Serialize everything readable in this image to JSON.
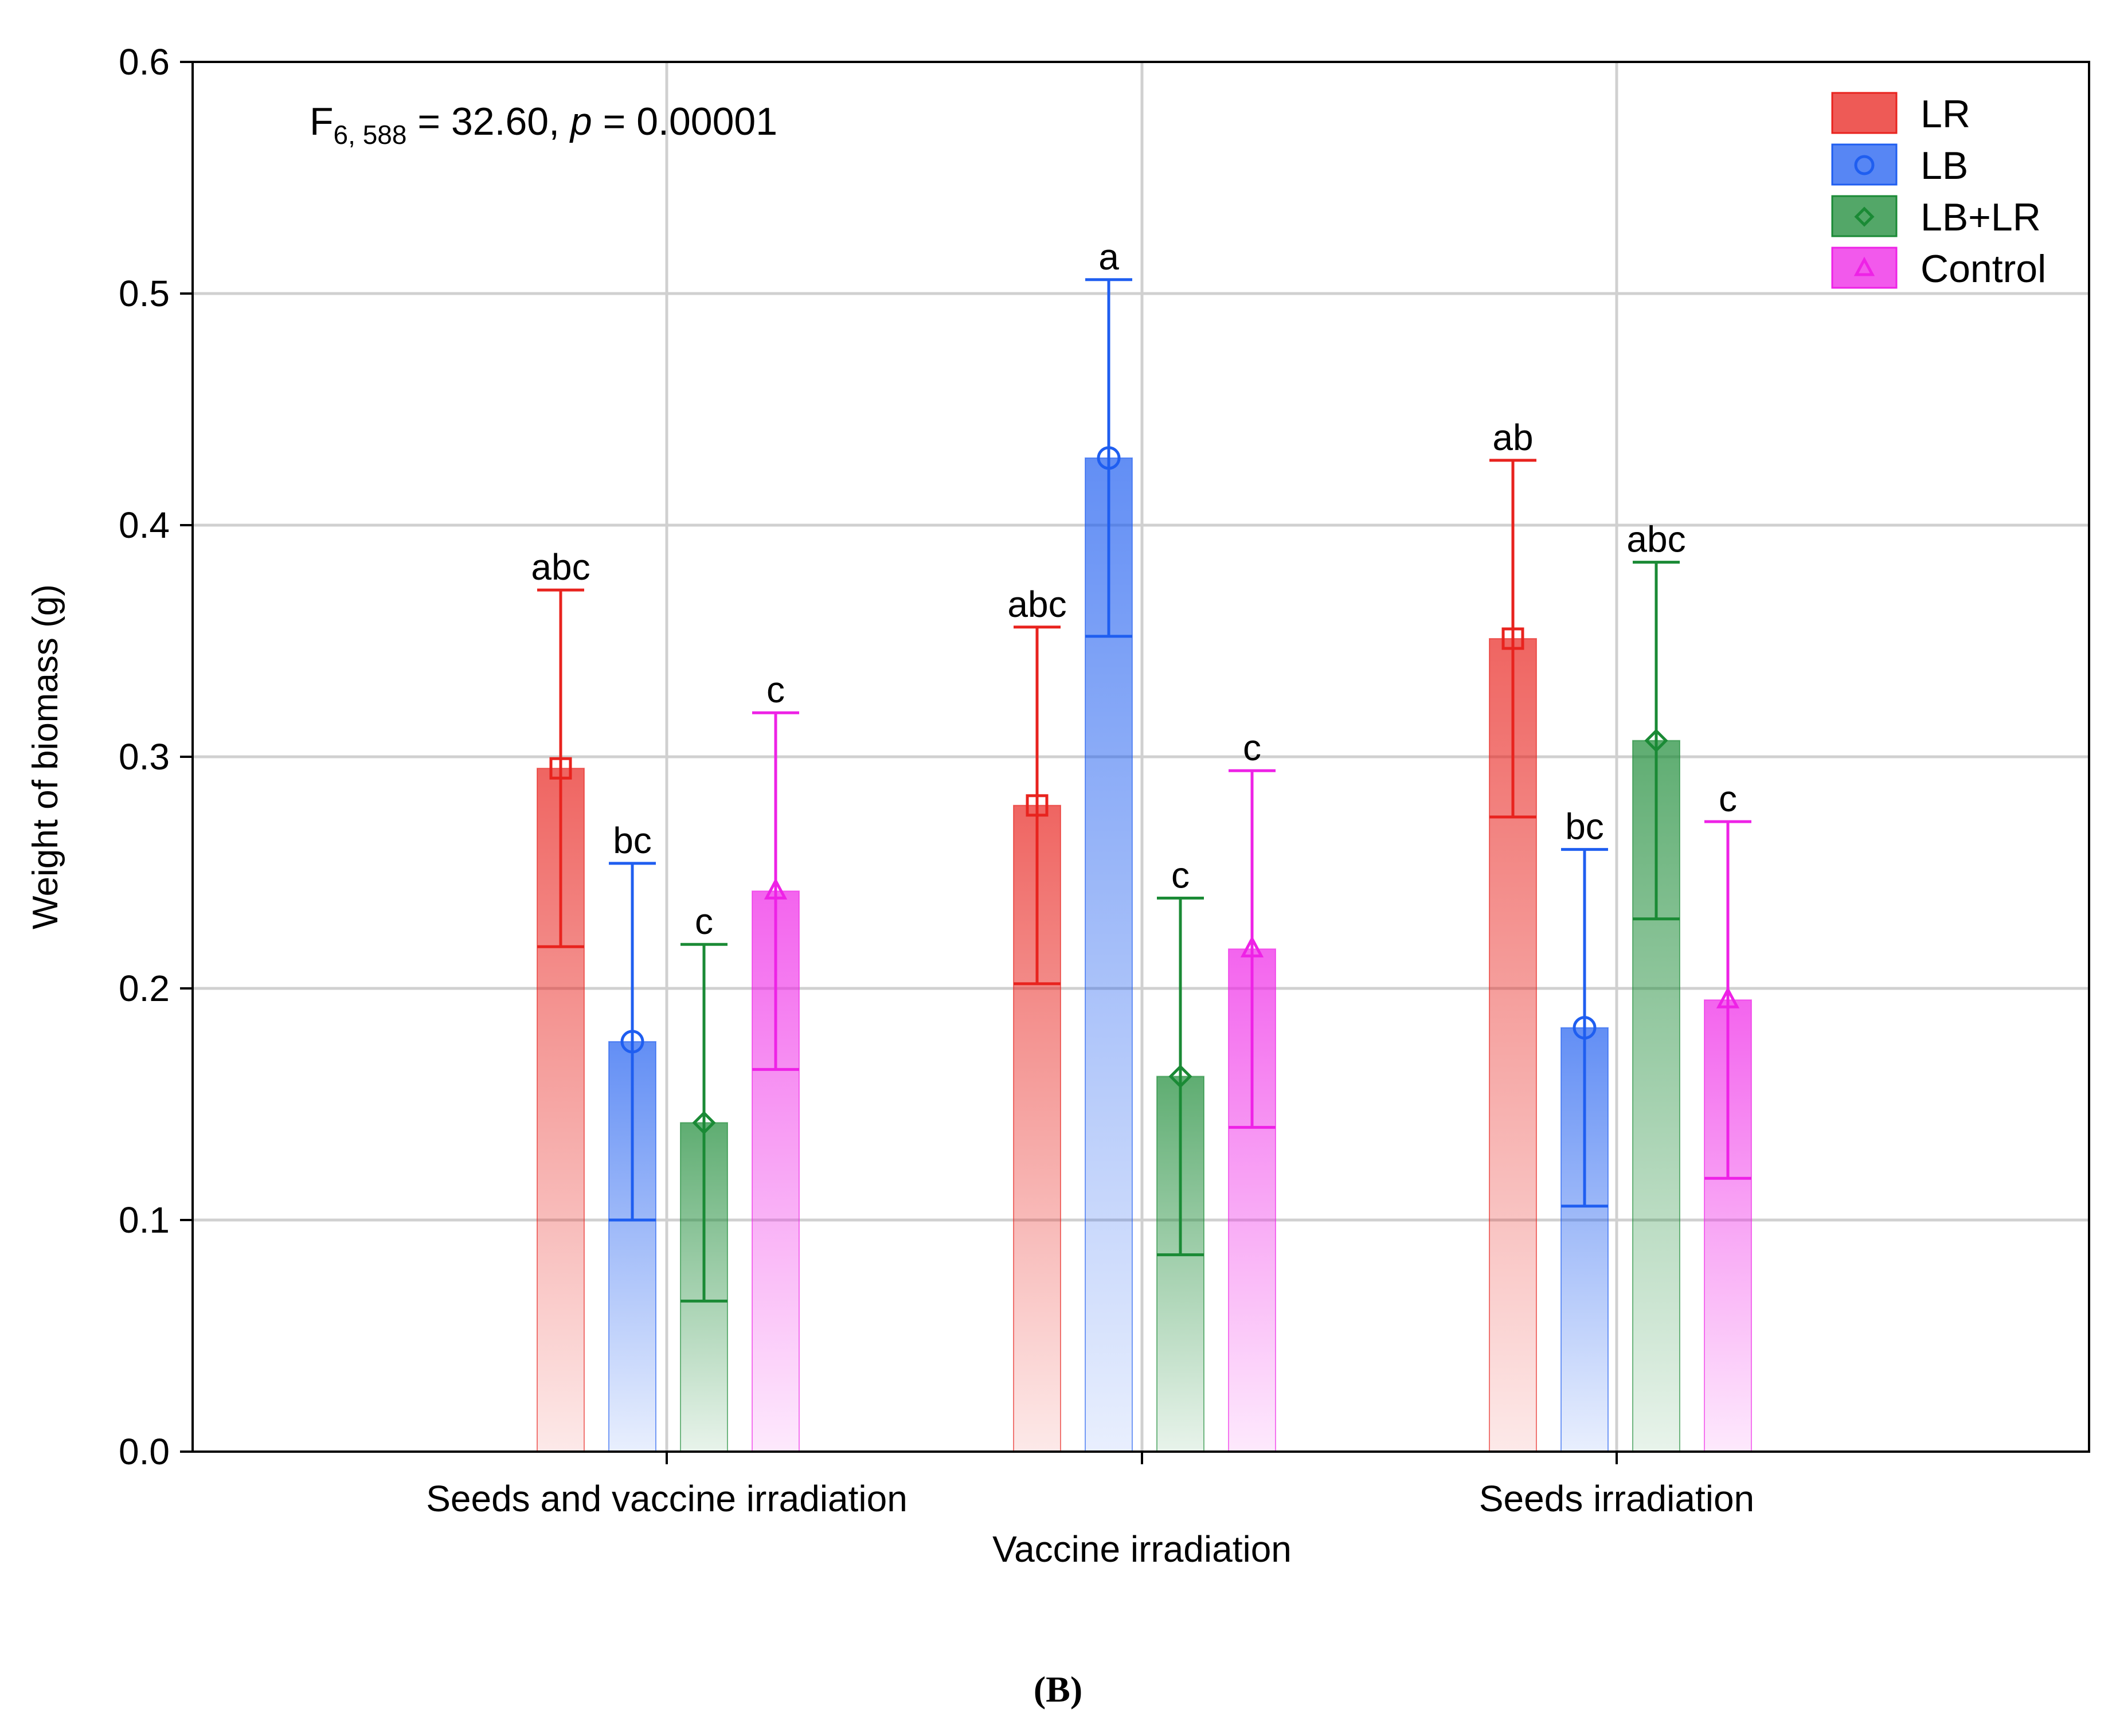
{
  "chart_data": {
    "type": "bar",
    "title": "",
    "xlabel": "",
    "ylabel": "Weight of biomass (g)",
    "ylim": [
      0,
      0.6
    ],
    "yticks": [
      "0.0",
      "0.1",
      "0.2",
      "0.3",
      "0.4",
      "0.5",
      "0.6"
    ],
    "grid": true,
    "legend_position": "top-right",
    "annotation": {
      "prefix": "F",
      "subscript": "6, 588",
      "middle": " = 32.60, ",
      "pvar": "p",
      "suffix": " = 0.00001"
    },
    "categories": [
      "Seeds and vaccine irradiation",
      "Vaccine irradiation",
      "Seeds irradiation"
    ],
    "series": [
      {
        "name": "LR",
        "color": "#e8231e",
        "marker": "square",
        "values": [
          0.295,
          0.279,
          0.351
        ],
        "err_low": [
          0.218,
          0.202,
          0.274
        ],
        "err_high": [
          0.372,
          0.356,
          0.428
        ],
        "letters": [
          "abc",
          "abc",
          "ab"
        ]
      },
      {
        "name": "LB",
        "color": "#1f5ef0",
        "marker": "circle",
        "values": [
          0.177,
          0.429,
          0.183
        ],
        "err_low": [
          0.1,
          0.352,
          0.106
        ],
        "err_high": [
          0.254,
          0.506,
          0.26
        ],
        "letters": [
          "bc",
          "a",
          "bc"
        ]
      },
      {
        "name": "LB+LR",
        "color": "#1a8a35",
        "marker": "diamond",
        "values": [
          0.142,
          0.162,
          0.307
        ],
        "err_low": [
          0.065,
          0.085,
          0.23
        ],
        "err_high": [
          0.219,
          0.239,
          0.384
        ],
        "letters": [
          "c",
          "c",
          "abc"
        ]
      },
      {
        "name": "Control",
        "color": "#ee22e6",
        "marker": "triangle",
        "values": [
          0.242,
          0.217,
          0.195
        ],
        "err_low": [
          0.165,
          0.14,
          0.118
        ],
        "err_high": [
          0.319,
          0.294,
          0.272
        ],
        "letters": [
          "c",
          "c",
          "c"
        ]
      }
    ]
  },
  "panel_label": "(B)"
}
